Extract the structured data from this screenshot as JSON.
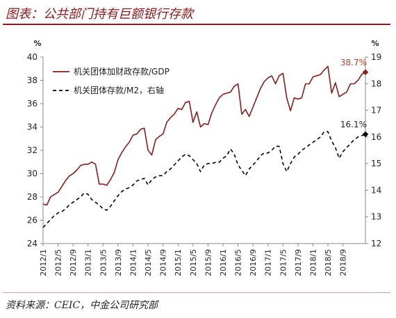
{
  "title": "图表：公共部门持有巨额银行存款",
  "source": "资料来源：CEIC，中金公司研究部",
  "chart_data": {
    "type": "line",
    "y_left_unit": "%",
    "y_right_unit": "%",
    "ylim_left": [
      24,
      40
    ],
    "yticks_left": [
      "24",
      "26",
      "28",
      "30",
      "32",
      "34",
      "36",
      "38",
      "40"
    ],
    "ylim_right": [
      12,
      19
    ],
    "yticks_right": [
      "12",
      "13",
      "14",
      "15",
      "16",
      "17",
      "18",
      "19"
    ],
    "x_ticks": [
      "2012/1",
      "2012/5",
      "2012/9",
      "2013/1",
      "2013/5",
      "2013/9",
      "2014/1",
      "2014/5",
      "2014/9",
      "2015/1",
      "2015/5",
      "2015/9",
      "2016/1",
      "2016/5",
      "2016/9",
      "2017/1",
      "2017/5",
      "2017/9",
      "2018/1",
      "2018/5",
      "2018/9"
    ],
    "x_start": "2012/1",
    "x_end": "2018/9",
    "legend_position": "top-left",
    "series": [
      {
        "name": "机关团体加财政存款/GDP",
        "axis": "left",
        "color": "#8b1a1a",
        "style": "solid",
        "end_label": "38.7%",
        "values": [
          27.4,
          27.3,
          28.0,
          28.2,
          28.4,
          28.9,
          29.4,
          29.8,
          30.0,
          30.3,
          30.7,
          30.8,
          30.8,
          31.0,
          30.8,
          29.1,
          29.1,
          29.0,
          29.5,
          30.1,
          31.2,
          31.8,
          32.3,
          32.7,
          33.3,
          33.4,
          33.8,
          33.9,
          32.0,
          31.6,
          32.9,
          33.2,
          33.4,
          34.4,
          34.8,
          35.1,
          35.6,
          35.5,
          36.1,
          36.2,
          34.4,
          35.3,
          34.0,
          34.3,
          34.2,
          35.2,
          35.9,
          36.5,
          36.8,
          36.9,
          37.0,
          37.5,
          37.7,
          35.1,
          35.5,
          34.9,
          35.7,
          36.5,
          37.3,
          37.9,
          38.2,
          38.4,
          37.7,
          38.4,
          38.6,
          36.5,
          35.4,
          36.5,
          36.4,
          36.5,
          37.7,
          37.7,
          38.3,
          38.4,
          38.5,
          38.9,
          39.2,
          36.9,
          37.8,
          36.6,
          36.8,
          37.0,
          37.7,
          37.7,
          38.0,
          38.5,
          38.7
        ]
      },
      {
        "name": "机关团体存款/M2，右轴",
        "axis": "right",
        "color": "#000000",
        "style": "dashed",
        "end_label": "16.1%",
        "values": [
          12.6,
          12.75,
          12.9,
          13.05,
          13.15,
          13.2,
          13.3,
          13.45,
          13.55,
          13.65,
          13.75,
          13.9,
          13.85,
          13.65,
          13.55,
          13.45,
          13.3,
          13.25,
          13.4,
          13.6,
          13.8,
          13.95,
          14.05,
          14.1,
          14.2,
          14.35,
          14.4,
          14.45,
          14.2,
          14.4,
          14.5,
          14.55,
          14.55,
          14.7,
          14.8,
          14.95,
          15.1,
          15.25,
          15.35,
          15.3,
          15.15,
          15.0,
          14.7,
          14.95,
          15.0,
          15.0,
          15.05,
          15.05,
          15.2,
          15.3,
          15.55,
          15.35,
          14.95,
          14.75,
          14.55,
          14.8,
          14.95,
          15.1,
          15.3,
          15.4,
          15.4,
          15.5,
          15.65,
          15.65,
          15.0,
          14.7,
          15.0,
          15.25,
          15.35,
          15.5,
          15.6,
          15.7,
          15.8,
          15.9,
          16.0,
          16.2,
          16.2,
          15.85,
          15.6,
          15.2,
          15.45,
          15.6,
          15.75,
          15.9,
          16.0,
          16.05,
          16.1
        ]
      }
    ]
  }
}
